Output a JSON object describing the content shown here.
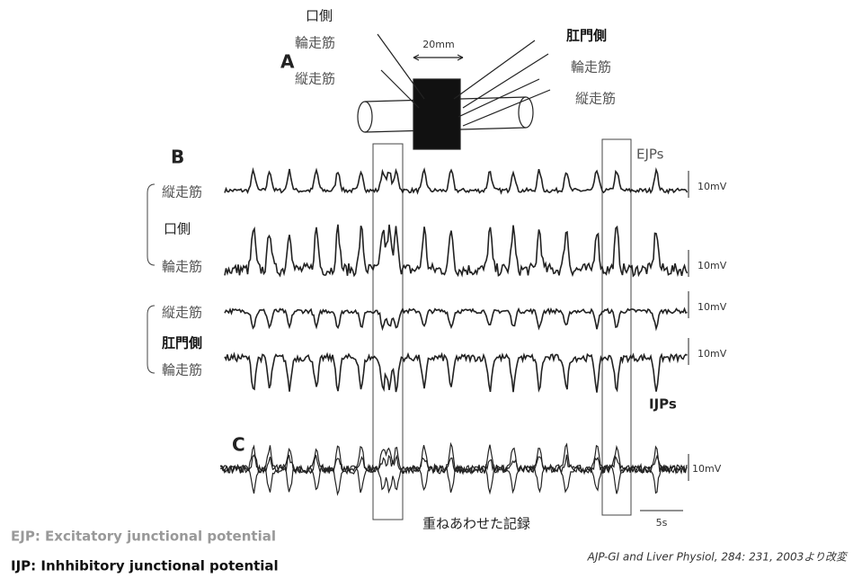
{
  "panel_a": {
    "label": "A",
    "distance": "20mm",
    "oral_side": {
      "name": "口側",
      "circular": "輪走筋",
      "longitudinal": "縦走筋"
    },
    "anal_side": {
      "name": "肛門側",
      "circular": "輪走筋",
      "longitudinal": "縦走筋"
    }
  },
  "panel_b": {
    "label": "B",
    "ejp": "EJPs",
    "ijp": "IJPs",
    "oral_side": {
      "name": "口側",
      "longitudinal": "縦走筋",
      "circular": "輪走筋"
    },
    "anal_side": {
      "name": "肛門側",
      "longitudinal": "縦走筋",
      "circular": "輪走筋"
    },
    "scales": [
      "10mV",
      "10mV",
      "10mV",
      "10mV"
    ]
  },
  "panel_c": {
    "label": "C",
    "caption": "重ねあわせた記録",
    "scale_v": "10mV",
    "scale_t": "5s"
  },
  "legend": [
    "EJP: Excitatory junctional potential",
    "IJP: Inhhibitory junctional potential"
  ],
  "citation": "AJP-GI and Liver Physiol, 284: 231, 2003より改変"
}
